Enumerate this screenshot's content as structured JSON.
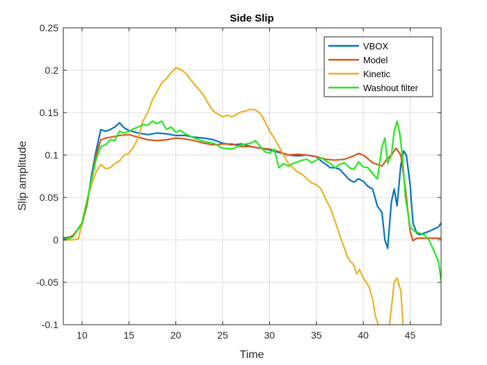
{
  "chart_data": {
    "type": "line",
    "title": "Side Slip",
    "xlabel": "Time",
    "ylabel": "Slip amplitude",
    "xlim": [
      8,
      48.3
    ],
    "ylim": [
      -0.1,
      0.25
    ],
    "xticks": [
      10,
      15,
      20,
      25,
      30,
      35,
      40,
      45
    ],
    "yticks": [
      -0.1,
      -0.05,
      0,
      0.05,
      0.1,
      0.15,
      0.2,
      0.25
    ],
    "ytick_labels": [
      "-0.1",
      "-0.05",
      "0",
      "0.05",
      "0.1",
      "0.15",
      "0.2",
      "0.25"
    ],
    "grid": true,
    "legend_position": "top-right",
    "series": [
      {
        "name": "VBOX",
        "color": "#0072BD",
        "x": [
          8,
          9,
          10,
          10.5,
          11,
          11.5,
          12,
          12.5,
          13,
          13.5,
          14,
          14.5,
          15,
          16,
          17,
          18,
          19,
          20,
          21,
          22,
          23,
          24,
          25,
          26,
          27,
          28,
          29,
          30,
          31,
          32,
          33,
          34,
          35,
          35.5,
          36,
          36.5,
          37,
          37.5,
          38,
          38.5,
          39,
          39.5,
          40,
          40.5,
          41,
          41.5,
          42,
          42.3,
          42.6,
          43,
          43.3,
          43.6,
          44,
          44.3,
          44.6,
          45,
          45.3,
          45.7,
          46,
          47,
          48,
          48.3
        ],
        "y": [
          0.002,
          0.004,
          0.02,
          0.04,
          0.075,
          0.105,
          0.13,
          0.128,
          0.13,
          0.133,
          0.138,
          0.132,
          0.129,
          0.126,
          0.124,
          0.126,
          0.125,
          0.123,
          0.123,
          0.121,
          0.12,
          0.118,
          0.114,
          0.112,
          0.113,
          0.11,
          0.108,
          0.106,
          0.103,
          0.1,
          0.099,
          0.1,
          0.098,
          0.093,
          0.089,
          0.085,
          0.085,
          0.083,
          0.077,
          0.071,
          0.068,
          0.072,
          0.069,
          0.063,
          0.06,
          0.04,
          0.032,
          0.0,
          -0.01,
          0.045,
          0.06,
          0.04,
          0.088,
          0.105,
          0.1,
          0.065,
          0.02,
          0.008,
          0.006,
          0.01,
          0.015,
          0.02
        ]
      },
      {
        "name": "Model",
        "color": "#D95319",
        "x": [
          8,
          9,
          10,
          10.5,
          11,
          11.5,
          12,
          12.5,
          13,
          13.5,
          14,
          15,
          16,
          17,
          18,
          19,
          20,
          21,
          22,
          23,
          24,
          25,
          26,
          27,
          28,
          29,
          30,
          31,
          32,
          33,
          34,
          35,
          36,
          37,
          38,
          39,
          39.5,
          40,
          41,
          42,
          42.5,
          43,
          43.5,
          44,
          44.5,
          45,
          45.3,
          45.7,
          46,
          47,
          48,
          48.3
        ],
        "y": [
          0.0,
          0.005,
          0.018,
          0.04,
          0.07,
          0.1,
          0.118,
          0.12,
          0.121,
          0.122,
          0.123,
          0.124,
          0.121,
          0.118,
          0.117,
          0.118,
          0.12,
          0.119,
          0.117,
          0.114,
          0.112,
          0.113,
          0.113,
          0.11,
          0.11,
          0.108,
          0.107,
          0.104,
          0.1,
          0.101,
          0.1,
          0.098,
          0.095,
          0.094,
          0.095,
          0.099,
          0.102,
          0.1,
          0.091,
          0.087,
          0.095,
          0.1,
          0.108,
          0.1,
          0.06,
          0.01,
          -0.001,
          0.002,
          0.002,
          0.002,
          0.002,
          0.002
        ]
      },
      {
        "name": "Kinetic",
        "color": "#EDB120",
        "x": [
          8,
          9,
          9.6,
          10,
          10.5,
          11,
          11.5,
          12,
          12.5,
          13,
          13.5,
          14,
          14.5,
          15,
          15.5,
          16,
          16.5,
          17,
          17.5,
          18,
          18.5,
          19,
          19.5,
          20,
          20.5,
          21,
          21.5,
          22,
          22.5,
          23,
          23.5,
          24,
          24.5,
          25,
          25.5,
          26,
          26.5,
          27,
          27.5,
          28,
          28.5,
          29,
          29.5,
          30,
          30.5,
          31,
          31.5,
          32,
          32.5,
          33,
          33.5,
          34,
          34.5,
          35,
          35.5,
          36,
          36.5,
          37,
          37.5,
          38,
          38.3,
          38.6,
          39,
          39.3,
          39.6,
          40,
          40.3,
          40.6,
          41,
          41.3,
          41.6,
          42,
          42.3,
          42.6,
          43,
          43.3,
          43.6,
          44,
          44.3,
          44.6,
          45,
          45.3
        ],
        "y": [
          0.0,
          0.0,
          0.001,
          0.02,
          0.045,
          0.065,
          0.08,
          0.089,
          0.084,
          0.085,
          0.09,
          0.093,
          0.1,
          0.102,
          0.11,
          0.12,
          0.14,
          0.15,
          0.165,
          0.175,
          0.185,
          0.19,
          0.197,
          0.203,
          0.201,
          0.197,
          0.19,
          0.183,
          0.177,
          0.17,
          0.16,
          0.152,
          0.148,
          0.145,
          0.147,
          0.145,
          0.148,
          0.151,
          0.152,
          0.154,
          0.153,
          0.149,
          0.14,
          0.128,
          0.12,
          0.11,
          0.1,
          0.09,
          0.085,
          0.08,
          0.077,
          0.072,
          0.067,
          0.065,
          0.06,
          0.048,
          0.037,
          0.022,
          0.005,
          -0.01,
          -0.02,
          -0.025,
          -0.03,
          -0.04,
          -0.035,
          -0.045,
          -0.05,
          -0.055,
          -0.07,
          -0.09,
          -0.1,
          -0.12,
          -0.14,
          -0.12,
          -0.08,
          -0.05,
          -0.045,
          -0.06,
          -0.11,
          -0.13,
          -0.11,
          -0.125
        ]
      },
      {
        "name": "Washout filter",
        "color": "#22E81C",
        "x": [
          8,
          9,
          10,
          10.5,
          11,
          11.5,
          12,
          12.5,
          13,
          13.5,
          14,
          14.5,
          15,
          15.5,
          16,
          16.5,
          17,
          17.5,
          18,
          18.5,
          19,
          19.5,
          20,
          20.5,
          21,
          22,
          23,
          24,
          25,
          26,
          27,
          28,
          28.5,
          29,
          29.5,
          30,
          30.5,
          31,
          31.5,
          32,
          32.5,
          33,
          33.5,
          34,
          34.5,
          35,
          35.5,
          36,
          36.5,
          37,
          37.5,
          38,
          38.5,
          39,
          39.5,
          40,
          40.5,
          41,
          41.5,
          42,
          42.3,
          42.6,
          43,
          43.3,
          43.6,
          43.9,
          44.2,
          44.5,
          45,
          45.5,
          46,
          46.5,
          47,
          47.5,
          48,
          48.3
        ],
        "y": [
          0.0,
          0.003,
          0.02,
          0.045,
          0.07,
          0.095,
          0.11,
          0.112,
          0.118,
          0.117,
          0.128,
          0.126,
          0.128,
          0.131,
          0.133,
          0.136,
          0.135,
          0.14,
          0.137,
          0.14,
          0.13,
          0.133,
          0.127,
          0.129,
          0.125,
          0.12,
          0.116,
          0.114,
          0.108,
          0.107,
          0.112,
          0.114,
          0.117,
          0.11,
          0.104,
          0.102,
          0.107,
          0.085,
          0.09,
          0.087,
          0.09,
          0.092,
          0.094,
          0.095,
          0.091,
          0.094,
          0.097,
          0.093,
          0.09,
          0.085,
          0.089,
          0.091,
          0.085,
          0.083,
          0.092,
          0.086,
          0.085,
          0.078,
          0.072,
          0.11,
          0.12,
          0.09,
          0.1,
          0.128,
          0.14,
          0.125,
          0.095,
          0.05,
          0.015,
          0.01,
          0.008,
          0.006,
          0.0,
          -0.012,
          -0.025,
          -0.047
        ]
      }
    ]
  }
}
